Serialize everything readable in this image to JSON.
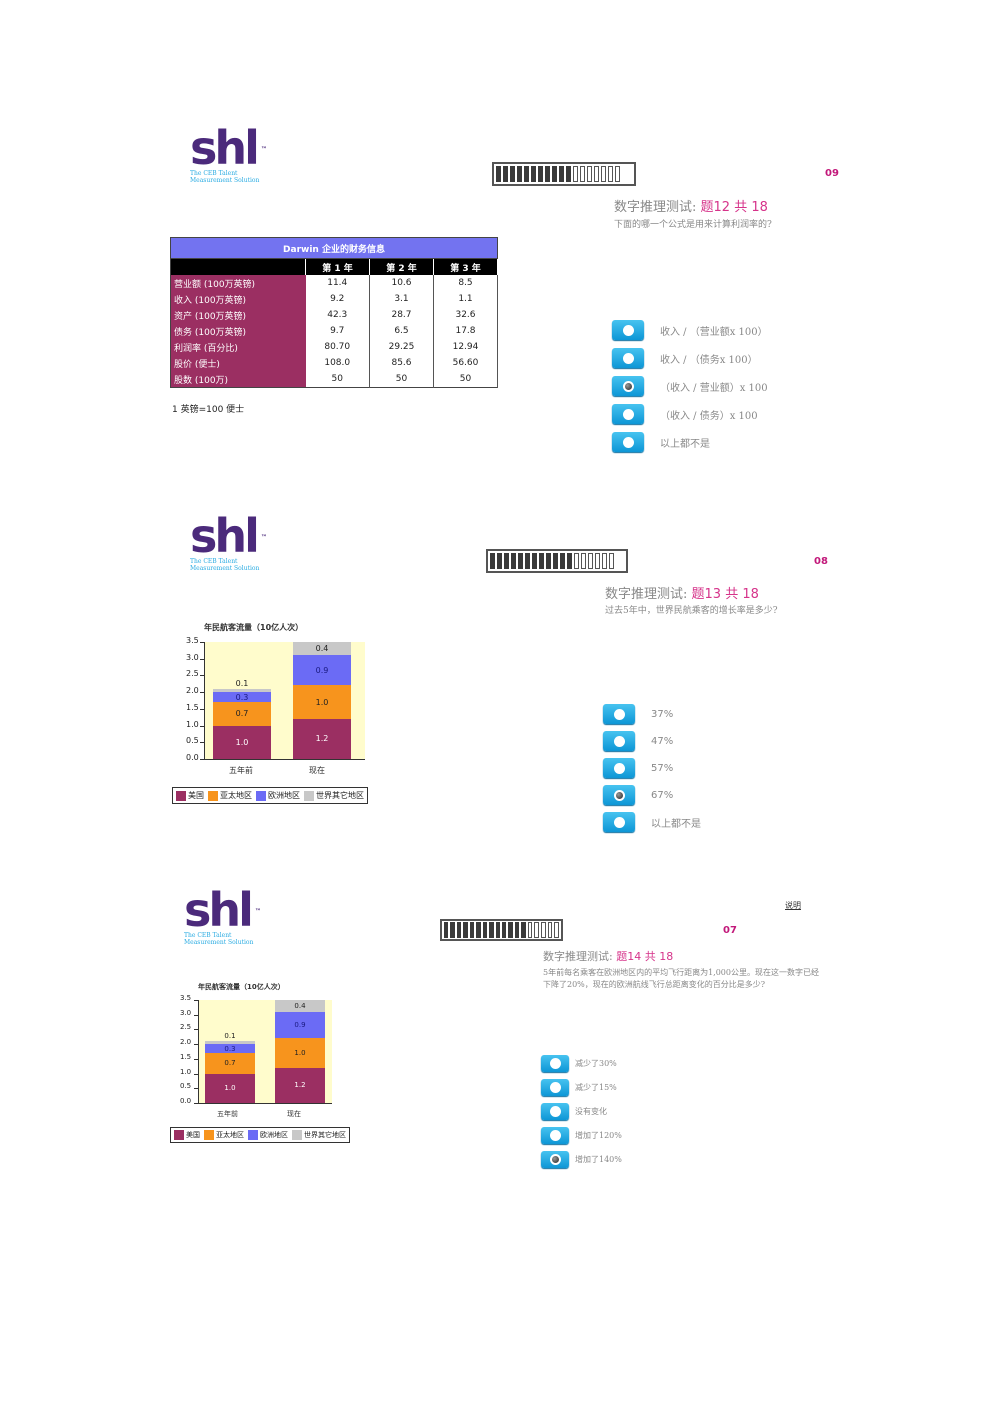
{
  "logo": {
    "wordmark": "shl",
    "tm": "™",
    "tagline_line1": "The CEB Talent",
    "tagline_line2": "Measurement Solution"
  },
  "colors": {
    "accent_pink": "#d6338a",
    "qnum": "#c2187a",
    "radio_blue": "#1ba6e3",
    "usa": "#9b2f62",
    "asia": "#f7941d",
    "europe": "#6b6bf5",
    "other": "#c8c8c8",
    "plot_bg": "#fffccc"
  },
  "panels": [
    {
      "question_counter": "09",
      "title_prefix": "数字推理测试: ",
      "title_highlight": "题12 共 18",
      "question": "下面的哪一个公式是用来计算利润率的?",
      "progress": {
        "filled": 11,
        "total": 18
      },
      "table": {
        "title": "Darwin 企业的财务信息",
        "columns": [
          "",
          "第 1 年",
          "第 2 年",
          "第 3 年"
        ],
        "rows": [
          [
            "营业额 (100万英镑)",
            "11.4",
            "10.6",
            "8.5"
          ],
          [
            "收入 (100万英镑)",
            "9.2",
            "3.1",
            "1.1"
          ],
          [
            "资产 (100万英镑)",
            "42.3",
            "28.7",
            "32.6"
          ],
          [
            "债务 (100万英镑)",
            "9.7",
            "6.5",
            "17.8"
          ],
          [
            "利润率 (百分比)",
            "80.70",
            "29.25",
            "12.94"
          ],
          [
            "股价 (便士)",
            "108.0",
            "85.6",
            "56.60"
          ],
          [
            "股数 (100万)",
            "50",
            "50",
            "50"
          ]
        ],
        "note": "1 英镑=100 便士"
      },
      "options": [
        {
          "label": "收入 / （营业额x 100）",
          "selected": false
        },
        {
          "label": "收入 / （债务x 100）",
          "selected": false
        },
        {
          "label": "（收入 / 营业额）x 100",
          "selected": true
        },
        {
          "label": "（收入 / 债务）x 100",
          "selected": false
        },
        {
          "label": "以上都不是",
          "selected": false
        }
      ]
    },
    {
      "question_counter": "08",
      "title_prefix": "数字推理测试: ",
      "title_highlight": "题13 共 18",
      "question": "过去5年中，世界民航乘客的增长率是多少?",
      "progress": {
        "filled": 12,
        "total": 18
      },
      "options": [
        {
          "label": "37%",
          "selected": false
        },
        {
          "label": "47%",
          "selected": false
        },
        {
          "label": "57%",
          "selected": false
        },
        {
          "label": "67%",
          "selected": true
        },
        {
          "label": "以上都不是",
          "selected": false
        }
      ]
    },
    {
      "question_counter": "07",
      "help_link": "说明",
      "title_prefix": "数字推理测试: ",
      "title_highlight": "题14 共 18",
      "question_line1": "5年前每名乘客在欧洲地区内的平均飞行距离为1,000公里。现在这一数字已经",
      "question_line2": "下降了20%，现在的欧洲航线飞行总距离变化的百分比是多少?",
      "progress": {
        "filled": 13,
        "total": 18
      },
      "options": [
        {
          "label": "减少了30%",
          "selected": false
        },
        {
          "label": "减少了15%",
          "selected": false
        },
        {
          "label": "没有变化",
          "selected": false
        },
        {
          "label": "增加了120%",
          "selected": false
        },
        {
          "label": "增加了140%",
          "selected": true
        }
      ]
    }
  ],
  "chart_data": [
    {
      "type": "bar",
      "stacked": true,
      "title": "年民航客流量（10亿人次）",
      "categories": [
        "五年前",
        "现在"
      ],
      "series": [
        {
          "name": "美国",
          "color": "#9b2f62",
          "values": [
            1.0,
            1.2
          ]
        },
        {
          "name": "亚太地区",
          "color": "#f7941d",
          "values": [
            0.7,
            1.0
          ]
        },
        {
          "name": "欧洲地区",
          "color": "#6b6bf5",
          "values": [
            0.3,
            0.9
          ]
        },
        {
          "name": "世界其它地区",
          "color": "#c8c8c8",
          "values": [
            0.1,
            0.4
          ]
        }
      ],
      "yticks": [
        "3.5",
        "3.0",
        "2.5",
        "2.0",
        "1.5",
        "1.0",
        "0.5",
        "0.0"
      ],
      "ylim": [
        0,
        3.5
      ],
      "legend_position": "bottom"
    },
    {
      "type": "bar",
      "stacked": true,
      "title": "年民航客流量（10亿人次）",
      "categories": [
        "五年前",
        "现在"
      ],
      "series": [
        {
          "name": "美国",
          "color": "#9b2f62",
          "values": [
            1.0,
            1.2
          ]
        },
        {
          "name": "亚太地区",
          "color": "#f7941d",
          "values": [
            0.7,
            1.0
          ]
        },
        {
          "name": "欧洲地区",
          "color": "#6b6bf5",
          "values": [
            0.3,
            0.9
          ]
        },
        {
          "name": "世界其它地区",
          "color": "#c8c8c8",
          "values": [
            0.1,
            0.4
          ]
        }
      ],
      "yticks": [
        "3.5",
        "3.0",
        "2.5",
        "2.0",
        "1.5",
        "1.0",
        "0.5",
        "0.0"
      ],
      "ylim": [
        0,
        3.5
      ],
      "legend_position": "bottom"
    }
  ]
}
